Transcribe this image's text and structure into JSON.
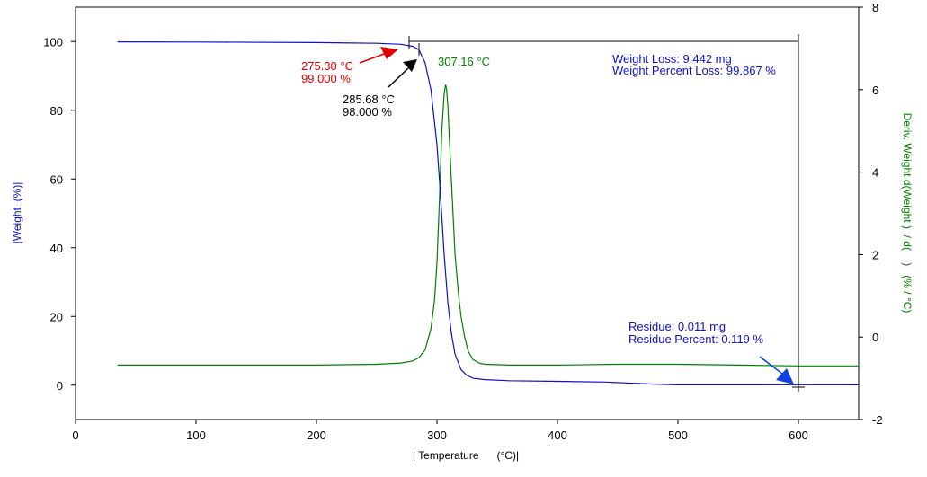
{
  "chart_data": {
    "type": "line",
    "xlabel": "| Temperature      (°C)|",
    "ylabel_left": "|Weight  (%)|",
    "ylabel_right": "Deriv. Weight d(Weight )  / d(    )   (% / °C)",
    "xlim": [
      0,
      650
    ],
    "ylim_left": [
      -10,
      110
    ],
    "ylim_right": [
      -2,
      8
    ],
    "x_ticks": [
      0,
      100,
      200,
      300,
      400,
      500,
      600
    ],
    "y_left_ticks": [
      0,
      20,
      40,
      60,
      80,
      100
    ],
    "y_right_ticks": [
      -2,
      0,
      2,
      4,
      6,
      8
    ],
    "grid": false,
    "colors": {
      "weight": "#1010c8",
      "deriv": "#008000",
      "marker": "#000000",
      "red_arrow": "#e00000",
      "blue_arrow": "#1040e0"
    },
    "series": [
      {
        "axis": "left",
        "x": [
          35,
          100,
          200,
          250,
          270,
          280,
          285,
          290,
          295,
          300,
          303,
          306,
          309,
          312,
          315,
          320,
          325,
          330,
          340,
          360,
          400,
          440,
          460,
          480,
          500,
          520,
          560,
          600,
          650
        ],
        "y": [
          99.9,
          99.85,
          99.7,
          99.5,
          99.2,
          98.6,
          97.6,
          94.0,
          86.0,
          70.0,
          55.0,
          38.0,
          24.0,
          15.0,
          9.0,
          4.5,
          2.8,
          2.0,
          1.6,
          1.3,
          1.1,
          0.9,
          0.6,
          0.3,
          0.1,
          0.1,
          0.1,
          0.12,
          0.1
        ]
      },
      {
        "axis": "right",
        "x": [
          35,
          100,
          200,
          250,
          270,
          280,
          285,
          290,
          295,
          298,
          300,
          302,
          304,
          306,
          307.16,
          308,
          309,
          311,
          313,
          315,
          318,
          320,
          323,
          326,
          330,
          335,
          340,
          360,
          400,
          450,
          500,
          550,
          600,
          650
        ],
        "y": [
          -0.68,
          -0.68,
          -0.68,
          -0.66,
          -0.63,
          -0.58,
          -0.5,
          -0.32,
          0.2,
          0.9,
          1.8,
          3.3,
          5.0,
          5.9,
          6.12,
          6.0,
          5.6,
          4.4,
          3.2,
          2.0,
          1.0,
          0.5,
          0.0,
          -0.35,
          -0.55,
          -0.63,
          -0.66,
          -0.68,
          -0.68,
          -0.66,
          -0.66,
          -0.68,
          -0.7,
          -0.7
        ]
      }
    ],
    "annotations": {
      "onset1": {
        "temp": "275.30 °C",
        "pct": "99.000 %"
      },
      "onset2": {
        "temp": "285.68 °C",
        "pct": "98.000 %"
      },
      "peak": {
        "temp": "307.16 °C"
      },
      "weight_loss": "Weight Loss: 9.442 mg",
      "weight_pct_loss": "Weight Percent Loss: 99.867 %",
      "residue": "Residue: 0.011 mg",
      "residue_pct": "Residue Percent: 0.119 %"
    }
  }
}
